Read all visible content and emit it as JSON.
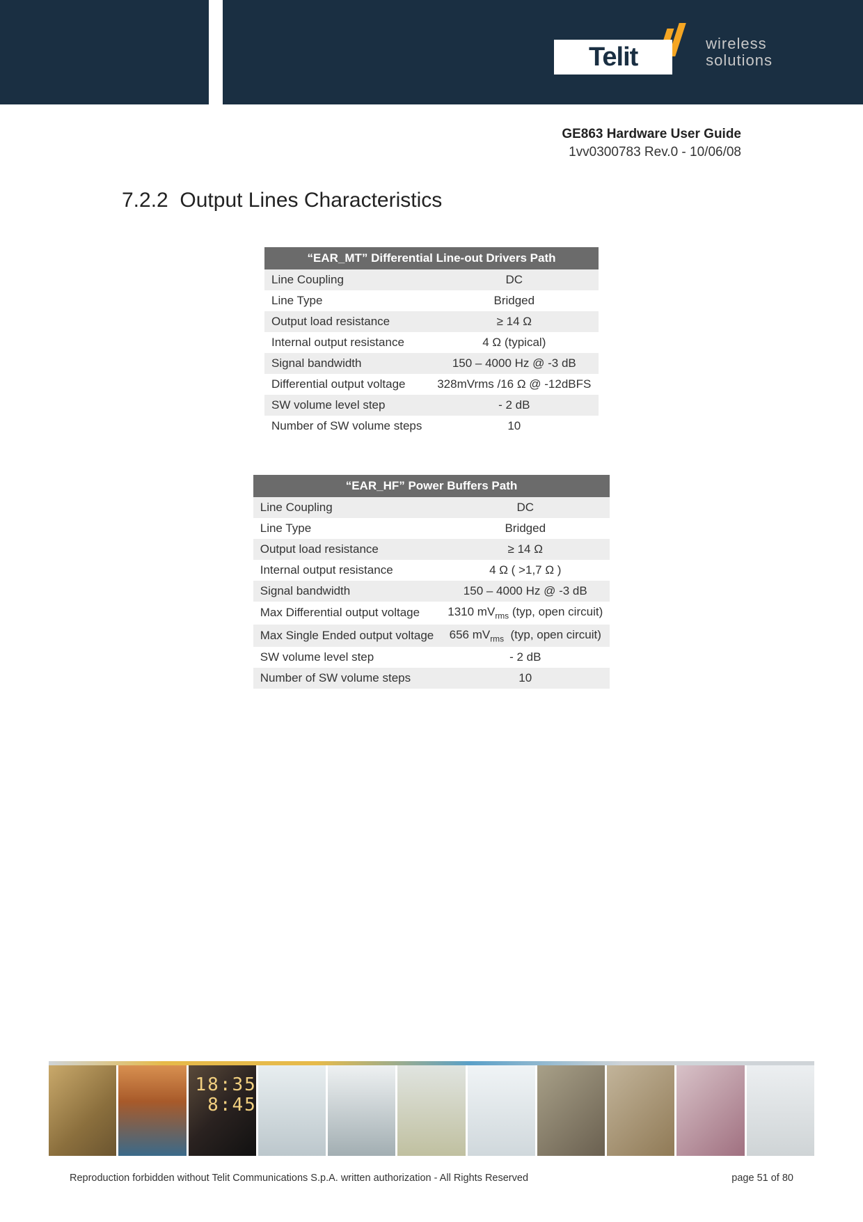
{
  "logo": {
    "brand": "Telit",
    "tagline1": "wireless",
    "tagline2": "solutions"
  },
  "header": {
    "title": "GE863 Hardware User Guide",
    "revision": "1vv0300783 Rev.0 - 10/06/08"
  },
  "section": {
    "number": "7.2.2",
    "title": "Output Lines Characteristics"
  },
  "table1": {
    "header": "“EAR_MT” Differential Line-out Drivers Path",
    "rows": [
      {
        "label": "Line Coupling",
        "value": "DC"
      },
      {
        "label": "Line Type",
        "value": "Bridged"
      },
      {
        "label": "Output load resistance",
        "value": "≥ 14 Ω"
      },
      {
        "label": "Internal output resistance",
        "value": "4 Ω (typical)"
      },
      {
        "label": "Signal bandwidth",
        "value": "150 – 4000 Hz @ -3 dB"
      },
      {
        "label": "Differential output voltage",
        "value": "328mVrms /16 Ω @ -12dBFS"
      },
      {
        "label": "SW volume level step",
        "value": "- 2 dB"
      },
      {
        "label": "Number of SW volume steps",
        "value": "10"
      }
    ]
  },
  "table2": {
    "header": "“EAR_HF” Power Buffers Path",
    "rows": [
      {
        "label": "Line Coupling",
        "value": "DC"
      },
      {
        "label": "Line Type",
        "value": "Bridged"
      },
      {
        "label": "Output load resistance",
        "value": "≥ 14 Ω"
      },
      {
        "label": "Internal output resistance",
        "value": "4 Ω ( >1,7 Ω )"
      },
      {
        "label": "Signal bandwidth",
        "value": "150 – 4000 Hz @ -3 dB"
      },
      {
        "label": "Max Differential output voltage",
        "value_html": "1310 mV<sub>rms</sub> (typ, open circuit)"
      },
      {
        "label": "Max Single Ended output voltage",
        "value_html": "656 mV<sub>rms</sub>  (typ, open circuit)"
      },
      {
        "label": "SW volume level step",
        "value": "- 2 dB"
      },
      {
        "label": "Number of SW volume steps",
        "value": "10"
      }
    ]
  },
  "footer": {
    "left": "Reproduction forbidden without Telit Communications S.p.A. written authorization - All Rights Reserved",
    "right": "page 51 of 80"
  },
  "style": {
    "table_header_bg": "#6b6b6b",
    "row_odd_bg": "#ededed",
    "row_even_bg": "#ffffff",
    "banner_bg": "#1a2f42",
    "accent": "#f5a623"
  }
}
